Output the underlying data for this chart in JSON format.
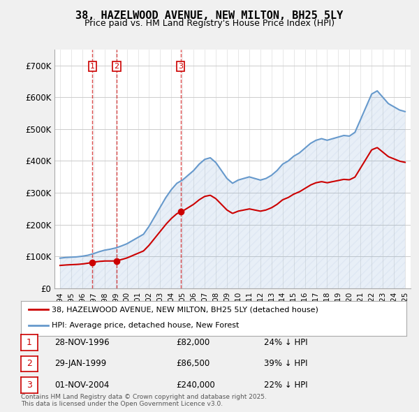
{
  "title": "38, HAZELWOOD AVENUE, NEW MILTON, BH25 5LY",
  "subtitle": "Price paid vs. HM Land Registry's House Price Index (HPI)",
  "hpi_color": "#6699cc",
  "price_color": "#cc0000",
  "bg_color": "#f0f0f0",
  "plot_bg": "#ffffff",
  "ylim": [
    0,
    750000
  ],
  "yticks": [
    0,
    100000,
    200000,
    300000,
    400000,
    500000,
    600000,
    700000
  ],
  "ytick_labels": [
    "£0",
    "£100K",
    "£200K",
    "£300K",
    "£400K",
    "£500K",
    "£600K",
    "£700K"
  ],
  "transactions": [
    {
      "num": 1,
      "date_str": "28-NOV-1996",
      "date_x": 1996.91,
      "price": 82000,
      "pct": "24%",
      "dir": "↓"
    },
    {
      "num": 2,
      "date_str": "29-JAN-1999",
      "date_x": 1999.08,
      "price": 86500,
      "pct": "39%",
      "dir": "↓"
    },
    {
      "num": 3,
      "date_str": "01-NOV-2004",
      "date_x": 2004.83,
      "price": 240000,
      "pct": "22%",
      "dir": "↓"
    }
  ],
  "legend_label_price": "38, HAZELWOOD AVENUE, NEW MILTON, BH25 5LY (detached house)",
  "legend_label_hpi": "HPI: Average price, detached house, New Forest",
  "footnote": "Contains HM Land Registry data © Crown copyright and database right 2025.\nThis data is licensed under the Open Government Licence v3.0.",
  "xlim_start": 1993.5,
  "xlim_end": 2025.5
}
